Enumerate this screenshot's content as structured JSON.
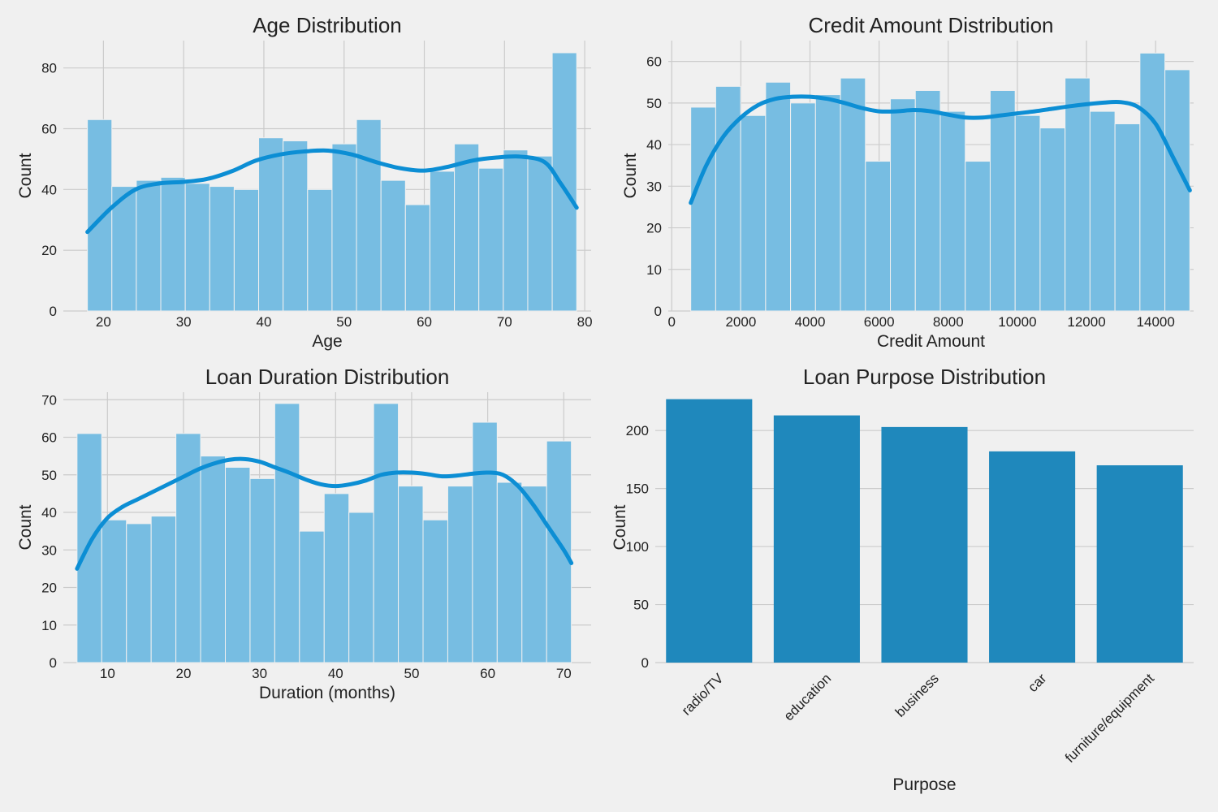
{
  "chart_data": [
    {
      "type": "bar",
      "subtype": "histogram",
      "title": "Age Distribution",
      "xlabel": "Age",
      "ylabel": "Count",
      "xlim": [
        15.0,
        80.8
      ],
      "ylim": [
        0,
        89
      ],
      "xticks": [
        20,
        30,
        40,
        50,
        60,
        70,
        80
      ],
      "yticks": [
        0,
        20,
        40,
        60,
        80
      ],
      "bin_edges": [
        18,
        21.05,
        24.1,
        27.15,
        30.2,
        33.25,
        36.3,
        39.35,
        42.4,
        45.45,
        48.5,
        51.55,
        54.6,
        57.65,
        60.7,
        63.75,
        66.8,
        69.85,
        72.9,
        75.95,
        79
      ],
      "values": [
        63,
        41,
        43,
        44,
        42,
        41,
        40,
        57,
        56,
        40,
        55,
        63,
        43,
        35,
        46,
        55,
        47,
        53,
        51,
        85
      ],
      "kde": [
        [
          18,
          26
        ],
        [
          21,
          34
        ],
        [
          24,
          40
        ],
        [
          27,
          42
        ],
        [
          30,
          42.5
        ],
        [
          33,
          43.5
        ],
        [
          36,
          46
        ],
        [
          39,
          49.5
        ],
        [
          42,
          51.5
        ],
        [
          45,
          52.5
        ],
        [
          48,
          52.8
        ],
        [
          51,
          51.5
        ],
        [
          54,
          49
        ],
        [
          57,
          47
        ],
        [
          60,
          46.2
        ],
        [
          63,
          47.5
        ],
        [
          66,
          49.5
        ],
        [
          69,
          50.5
        ],
        [
          72,
          50.8
        ],
        [
          75,
          49
        ],
        [
          77,
          42
        ],
        [
          79,
          34
        ]
      ],
      "grid": true
    },
    {
      "type": "bar",
      "subtype": "histogram",
      "title": "Credit Amount Distribution",
      "xlabel": "Credit Amount",
      "ylabel": "Count",
      "xlim": [
        -100,
        15100
      ],
      "ylim": [
        0,
        65
      ],
      "xticks": [
        0,
        2000,
        4000,
        6000,
        8000,
        10000,
        12000,
        14000
      ],
      "yticks": [
        0,
        10,
        20,
        30,
        40,
        50,
        60
      ],
      "bin_edges": [
        550,
        1272,
        1994,
        2716,
        3438,
        4160,
        4882,
        5604,
        6326,
        7048,
        7770,
        8492,
        9214,
        9936,
        10658,
        11380,
        12102,
        12824,
        13546,
        14268,
        14990
      ],
      "values": [
        49,
        54,
        47,
        55,
        50,
        52,
        56,
        36,
        51,
        53,
        48,
        36,
        53,
        47,
        44,
        56,
        48,
        45,
        62,
        58
      ],
      "kde": [
        [
          550,
          26
        ],
        [
          1000,
          35
        ],
        [
          1500,
          42
        ],
        [
          2000,
          46.5
        ],
        [
          2500,
          49.5
        ],
        [
          3000,
          51
        ],
        [
          3500,
          51.5
        ],
        [
          4000,
          51.5
        ],
        [
          4500,
          51
        ],
        [
          5000,
          50
        ],
        [
          5500,
          48.8
        ],
        [
          6000,
          48
        ],
        [
          6500,
          48
        ],
        [
          7000,
          48.3
        ],
        [
          7500,
          48
        ],
        [
          8000,
          47.2
        ],
        [
          8500,
          46.5
        ],
        [
          9000,
          46.5
        ],
        [
          9500,
          47
        ],
        [
          10000,
          47.5
        ],
        [
          10500,
          48
        ],
        [
          11000,
          48.6
        ],
        [
          11500,
          49.2
        ],
        [
          12000,
          49.7
        ],
        [
          12500,
          50.1
        ],
        [
          13000,
          50.2
        ],
        [
          13500,
          49
        ],
        [
          14000,
          45
        ],
        [
          14500,
          37
        ],
        [
          14990,
          29
        ]
      ],
      "grid": true
    },
    {
      "type": "bar",
      "subtype": "histogram",
      "title": "Loan Duration Distribution",
      "xlabel": "Duration (months)",
      "ylabel": "Count",
      "xlim": [
        4.2,
        73.6
      ],
      "ylim": [
        0,
        72
      ],
      "xticks": [
        10,
        20,
        30,
        40,
        50,
        60,
        70
      ],
      "yticks": [
        0,
        10,
        20,
        30,
        40,
        50,
        60,
        70
      ],
      "bin_edges": [
        6,
        9.25,
        12.5,
        15.75,
        19,
        22.25,
        25.5,
        28.75,
        32,
        35.25,
        38.5,
        41.75,
        45,
        48.25,
        51.5,
        54.75,
        58,
        61.25,
        64.5,
        67.75,
        71
      ],
      "values": [
        61,
        38,
        37,
        39,
        61,
        55,
        52,
        49,
        69,
        35,
        45,
        40,
        69,
        47,
        38,
        47,
        64,
        48,
        47,
        59
      ],
      "kde": [
        [
          6,
          25
        ],
        [
          8,
          33
        ],
        [
          10,
          38.5
        ],
        [
          12,
          41.5
        ],
        [
          14,
          43.5
        ],
        [
          16,
          45.5
        ],
        [
          18,
          47.5
        ],
        [
          20,
          49.5
        ],
        [
          22,
          51.5
        ],
        [
          24,
          53
        ],
        [
          26,
          54
        ],
        [
          28,
          54.2
        ],
        [
          30,
          53.5
        ],
        [
          32,
          52
        ],
        [
          34,
          50.5
        ],
        [
          36,
          48.8
        ],
        [
          38,
          47.5
        ],
        [
          40,
          47
        ],
        [
          42,
          47.5
        ],
        [
          44,
          48.5
        ],
        [
          46,
          50
        ],
        [
          48,
          50.6
        ],
        [
          50,
          50.6
        ],
        [
          52,
          50.2
        ],
        [
          54,
          49.6
        ],
        [
          56,
          49.8
        ],
        [
          58,
          50.3
        ],
        [
          60,
          50.6
        ],
        [
          62,
          50
        ],
        [
          64,
          47
        ],
        [
          66,
          42
        ],
        [
          68,
          36
        ],
        [
          70,
          30
        ],
        [
          71,
          26.5
        ]
      ],
      "grid": true
    },
    {
      "type": "bar",
      "title": "Loan Purpose Distribution",
      "xlabel": "Purpose",
      "ylabel": "Count",
      "ylim": [
        0,
        233
      ],
      "yticks": [
        0,
        50,
        100,
        150,
        200
      ],
      "categories": [
        "radio/TV",
        "education",
        "business",
        "car",
        "furniture/equipment"
      ],
      "values": [
        227,
        213,
        203,
        182,
        170
      ],
      "grid": true
    }
  ],
  "colors": {
    "background": "#f0f0f0",
    "hist_bar": "#77bde2",
    "kde_line": "#0c8ed4",
    "category_bar": "#1f88bc",
    "grid": "#cbcbcb"
  }
}
